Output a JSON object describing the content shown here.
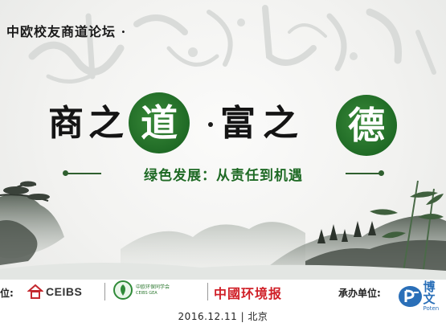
{
  "forum": {
    "title": "中欧校友商道论坛 ·"
  },
  "main_title": {
    "c1": "商",
    "c2": "之",
    "c3": "道",
    "dot": "·",
    "c4": "富",
    "c5": "之",
    "c6": "德"
  },
  "subtitle": "绿色发展：从责任到机遇",
  "sponsors": {
    "label": "位:",
    "ceibs": "CEIBS",
    "assoc_name": "中欧环保同学会",
    "assoc_sub": "CEIBS GEA",
    "newspaper": "中國环境报"
  },
  "organizer": {
    "label": "承办单位:",
    "name": "博文",
    "name_sub": "Poten"
  },
  "event": {
    "date_place": "2016.12.11 | 北京"
  },
  "colors": {
    "green": "#1f6a25",
    "red": "#d02028",
    "blue": "#2a6fb8"
  }
}
